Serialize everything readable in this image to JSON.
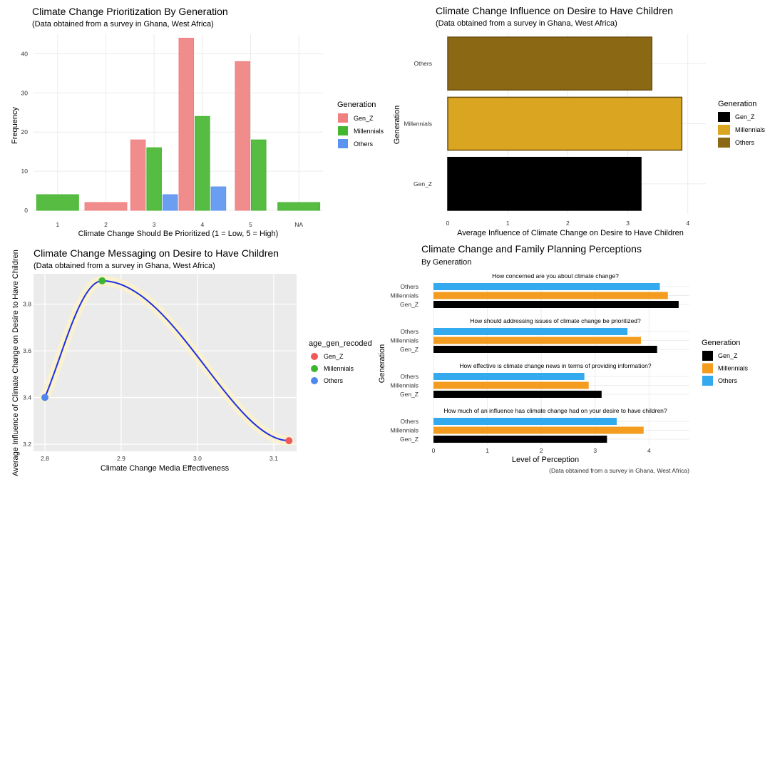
{
  "chart_data": [
    {
      "type": "bar",
      "title": "Climate Change Prioritization By Generation",
      "subtitle": "(Data obtained from a survey in Ghana, West Africa)",
      "xlabel": "Climate Change Should Be Prioritized (1 = Low, 5 = High)",
      "ylabel": "Frequency",
      "ylim": [
        0,
        45
      ],
      "yticks": [
        0,
        10,
        20,
        30,
        40
      ],
      "categories": [
        "1",
        "2",
        "3",
        "4",
        "5",
        "NA"
      ],
      "legend_title": "Generation",
      "legend_position": "right",
      "grid": true,
      "series": [
        {
          "name": "Gen_Z",
          "color": "#f08080",
          "values": [
            null,
            2,
            18,
            44,
            38,
            null
          ]
        },
        {
          "name": "Millennials",
          "color": "#44b52e",
          "values": [
            4,
            null,
            16,
            24,
            18,
            2
          ]
        },
        {
          "name": "Others",
          "color": "#5b93f0",
          "values": [
            null,
            null,
            4,
            6,
            null,
            null
          ]
        }
      ]
    },
    {
      "type": "bar",
      "orientation": "horizontal",
      "title": "Climate Change Influence on Desire to Have Children",
      "subtitle": "(Data obtained from a survey in Ghana, West Africa)",
      "xlabel": "Average Influence of Climate Change on Desire to Have Children",
      "ylabel": "Generation",
      "xlim": [
        0,
        4.3
      ],
      "xticks": [
        0,
        1,
        2,
        3,
        4
      ],
      "categories": [
        "Others",
        "Millennials",
        "Gen_Z"
      ],
      "values": [
        3.4,
        3.9,
        3.22
      ],
      "colors": [
        "#8b6914",
        "#daa520",
        "#000000"
      ],
      "legend_title": "Generation",
      "legend_items": [
        "Gen_Z",
        "Millennials",
        "Others"
      ],
      "legend_colors": [
        "#000000",
        "#daa520",
        "#8b6914"
      ],
      "legend_position": "right",
      "grid": true
    },
    {
      "type": "line",
      "title": "Climate Change Messaging on Desire to Have Children",
      "subtitle": "(Data obtained from a survey in Ghana, West Africa)",
      "xlabel": "Climate Change Media Effectiveness",
      "ylabel": "Average Influence of Climate Change on Desire to Have Children",
      "xlim": [
        2.8,
        3.13
      ],
      "ylim": [
        3.2,
        3.93
      ],
      "xticks": [
        2.8,
        2.9,
        3.0,
        3.1
      ],
      "xtick_labels": [
        "2.8",
        "2.9",
        "3.0",
        "3.1"
      ],
      "yticks": [
        3.2,
        3.4,
        3.6,
        3.8
      ],
      "yticks_labels": [
        "3.2",
        "3.4",
        "3.6",
        "3.8"
      ],
      "legend_title": "age_gen_recoded",
      "legend_position": "right",
      "line_color": "#1f2fe6",
      "grid": true,
      "points": [
        {
          "name": "Others",
          "x": 2.8,
          "y": 3.4,
          "color": "#4f86f0"
        },
        {
          "name": "Millennials",
          "x": 2.875,
          "y": 3.9,
          "color": "#3cb531"
        },
        {
          "name": "Gen_Z",
          "x": 3.12,
          "y": 3.215,
          "color": "#ee5a5a"
        }
      ],
      "legend_items": [
        "Gen_Z",
        "Millennials",
        "Others"
      ],
      "legend_colors": [
        "#ee5a5a",
        "#3cb531",
        "#4f86f0"
      ]
    },
    {
      "type": "bar",
      "orientation": "horizontal",
      "title": "Climate Change and Family Planning Perceptions",
      "subtitle": "By Generation",
      "caption": "(Data obtained from a survey in Ghana, West Africa)",
      "xlabel": "Level of Perception",
      "ylabel": "Generation",
      "xlim": [
        0,
        4.75
      ],
      "xticks": [
        0,
        1,
        2,
        3,
        4
      ],
      "legend_title": "Generation",
      "legend_items": [
        "Gen_Z",
        "Millennials",
        "Others"
      ],
      "legend_colors": [
        "#000000",
        "#f39c1f",
        "#33a9ee"
      ],
      "legend_position": "right",
      "grid": true,
      "facets": [
        {
          "question": "How concerned are you about climate change?",
          "values": {
            "Others": 4.2,
            "Millennials": 4.35,
            "Gen_Z": 4.55
          }
        },
        {
          "question": "How should addressing issues of climate change be prioritized?",
          "values": {
            "Others": 3.6,
            "Millennials": 3.85,
            "Gen_Z": 4.15
          }
        },
        {
          "question": "How effective is climate change news in terms of providing information?",
          "values": {
            "Others": 2.8,
            "Millennials": 2.88,
            "Gen_Z": 3.12
          }
        },
        {
          "question": "How much of an influence has climate change had on your desire to have children?",
          "values": {
            "Others": 3.4,
            "Millennials": 3.9,
            "Gen_Z": 3.22
          }
        }
      ]
    }
  ]
}
